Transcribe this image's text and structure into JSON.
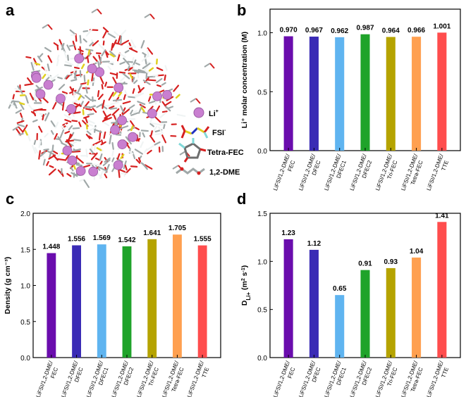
{
  "panel_letters": {
    "a": "a",
    "b": "b",
    "c": "c",
    "d": "d"
  },
  "legend_a": {
    "li": "Li",
    "li_sup": "+",
    "fsi": "FSI",
    "fsi_sup": "-",
    "tetra_fec": "Tetra-FEC",
    "dme": "1,2-DME"
  },
  "colors": {
    "fec": "#6a0dad",
    "dfec": "#3a2bb5",
    "dfec1": "#5fb4f0",
    "dfec2": "#1fa32a",
    "trifec": "#b5a300",
    "tetrafec": "#ffa050",
    "tte": "#ff4d4d",
    "li_sphere": "#c97fd0",
    "oxygen": "#d62020",
    "carbon": "#a0a8a8",
    "hydrogen": "#f0f4f4",
    "sulfur": "#e0d020",
    "nitrogen": "#2030c0",
    "fluorine": "#80d8d8"
  },
  "chart_data": [
    {
      "panel": "b",
      "type": "bar",
      "categories": [
        [
          "LiFSI/1,2-DME/",
          "FEC"
        ],
        [
          "LiFSI/1,2-DME/",
          "DFEC"
        ],
        [
          "LiFSI/1,2-DME/",
          "DFEC1"
        ],
        [
          "LiFSI/1,2-DME/",
          "DFEC2"
        ],
        [
          "LiFSI/1,2-DME/",
          "Tri-FEC"
        ],
        [
          "LiFSI/1,2-DME/",
          "Tetra-FEC"
        ],
        [
          "LiFSI/1,2-DME/",
          "TTE"
        ]
      ],
      "values": [
        0.97,
        0.967,
        0.962,
        0.987,
        0.964,
        0.966,
        1.001
      ],
      "labels": [
        "0.970",
        "0.967",
        "0.962",
        "0.987",
        "0.964",
        "0.966",
        "1.001"
      ],
      "ylabel": "Li⁺ molar concentration (M)",
      "ylim": [
        0,
        1.2
      ],
      "yticks": [
        "0.0",
        "0.5",
        "1.0"
      ],
      "ytick_values": [
        0,
        0.5,
        1.0
      ]
    },
    {
      "panel": "c",
      "type": "bar",
      "categories": [
        [
          "LiFSI/1,2-DME/",
          "FEC"
        ],
        [
          "LiFSI/1,2-DME/",
          "DFEC"
        ],
        [
          "LiFSI/1,2-DME/",
          "DFEC1"
        ],
        [
          "LiFSI/1,2-DME/",
          "DFEC2"
        ],
        [
          "LiFSI/1,2-DME/",
          "Tri-FEC"
        ],
        [
          "LiFSI/1,2-DME/",
          "Tetra-FEC"
        ],
        [
          "LiFSI/1,2-DME/",
          "TTE"
        ]
      ],
      "values": [
        1.448,
        1.556,
        1.569,
        1.542,
        1.641,
        1.705,
        1.555
      ],
      "labels": [
        "1.448",
        "1.556",
        "1.569",
        "1.542",
        "1.641",
        "1.705",
        "1.555"
      ],
      "ylabel": "Density (g cm⁻³)",
      "ylim": [
        0,
        2.0
      ],
      "yticks": [
        "0.0",
        "0.5",
        "1.0",
        "1.5",
        "2.0"
      ],
      "ytick_values": [
        0,
        0.5,
        1.0,
        1.5,
        2.0
      ]
    },
    {
      "panel": "d",
      "type": "bar",
      "categories": [
        [
          "LiFSI/1,2-DME/",
          "FEC"
        ],
        [
          "LiFSI/1,2-DME/",
          "DFEC"
        ],
        [
          "LiFSI/1,2-DME/",
          "DFEC1"
        ],
        [
          "LiFSI/1,2-DME/",
          "DFEC2"
        ],
        [
          "LiFSI/1,2-DME/",
          "Tri-FEC"
        ],
        [
          "LiFSI/1,2-DME/",
          "Tetra-FEC"
        ],
        [
          "LiFSI/1,2-DME/",
          "TTE"
        ]
      ],
      "values": [
        1.23,
        1.12,
        0.65,
        0.91,
        0.93,
        1.04,
        1.41
      ],
      "labels": [
        "1.23",
        "1.12",
        "0.65",
        "0.91",
        "0.93",
        "1.04",
        "1.41"
      ],
      "ylabel": "D_Li+ (m² s⁻¹)",
      "ylim": [
        0,
        1.5
      ],
      "yticks": [
        "0.0",
        "0.5",
        "1.0",
        "1.5"
      ],
      "ytick_values": [
        0,
        0.5,
        1.0,
        1.5
      ]
    }
  ]
}
